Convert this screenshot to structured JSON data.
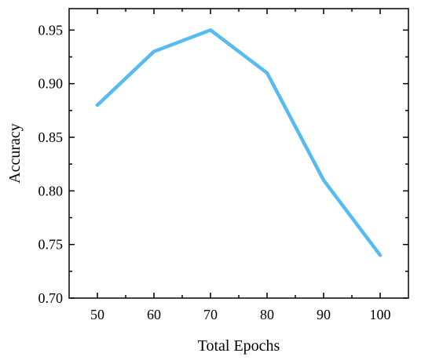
{
  "chart_data": {
    "type": "line",
    "title": "",
    "xlabel": "Total Epochs",
    "ylabel": "Accuracy",
    "x": [
      50,
      60,
      70,
      80,
      90,
      100
    ],
    "xticks": [
      "50",
      "60",
      "70",
      "80",
      "90",
      "100"
    ],
    "xlim": [
      45,
      105
    ],
    "ylim": [
      0.7,
      0.97
    ],
    "yticks": [
      "0.70",
      "0.75",
      "0.80",
      "0.85",
      "0.90",
      "0.95"
    ],
    "ytick_values": [
      0.7,
      0.75,
      0.8,
      0.85,
      0.9,
      0.95
    ],
    "series": [
      {
        "values": [
          0.88,
          0.93,
          0.95,
          0.91,
          0.81,
          0.74
        ],
        "color": "#55bbf0"
      }
    ],
    "grid": false,
    "legend": "none"
  }
}
